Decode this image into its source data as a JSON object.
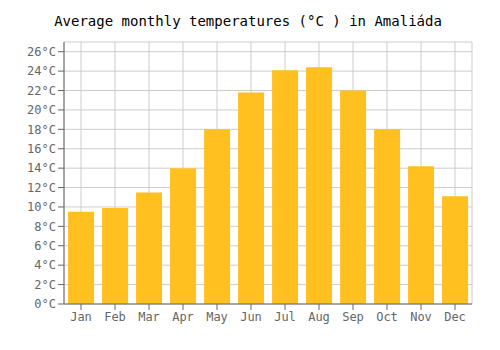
{
  "chart_data": {
    "type": "bar",
    "title": "Average monthly temperatures (°C ) in Amaliáda",
    "categories": [
      "Jan",
      "Feb",
      "Mar",
      "Apr",
      "May",
      "Jun",
      "Jul",
      "Aug",
      "Sep",
      "Oct",
      "Nov",
      "Dec"
    ],
    "values": [
      9.5,
      9.9,
      11.5,
      14.0,
      18.0,
      21.8,
      24.1,
      24.4,
      22.0,
      18.0,
      14.2,
      11.1
    ],
    "color": "#FFC020",
    "ylim": [
      0,
      27
    ],
    "yticks": [
      {
        "value": 0,
        "label": "0°C"
      },
      {
        "value": 2,
        "label": "2°C"
      },
      {
        "value": 4,
        "label": "4°C"
      },
      {
        "value": 6,
        "label": "6°C"
      },
      {
        "value": 8,
        "label": "8°C"
      },
      {
        "value": 10,
        "label": "10°C"
      },
      {
        "value": 12,
        "label": "12°C"
      },
      {
        "value": 14,
        "label": "14°C"
      },
      {
        "value": 16,
        "label": "16°C"
      },
      {
        "value": 18,
        "label": "18°C"
      },
      {
        "value": 20,
        "label": "20°C"
      },
      {
        "value": 22,
        "label": "22°C"
      },
      {
        "value": 24,
        "label": "24°C"
      },
      {
        "value": 26,
        "label": "26°C"
      }
    ],
    "grid": true
  }
}
